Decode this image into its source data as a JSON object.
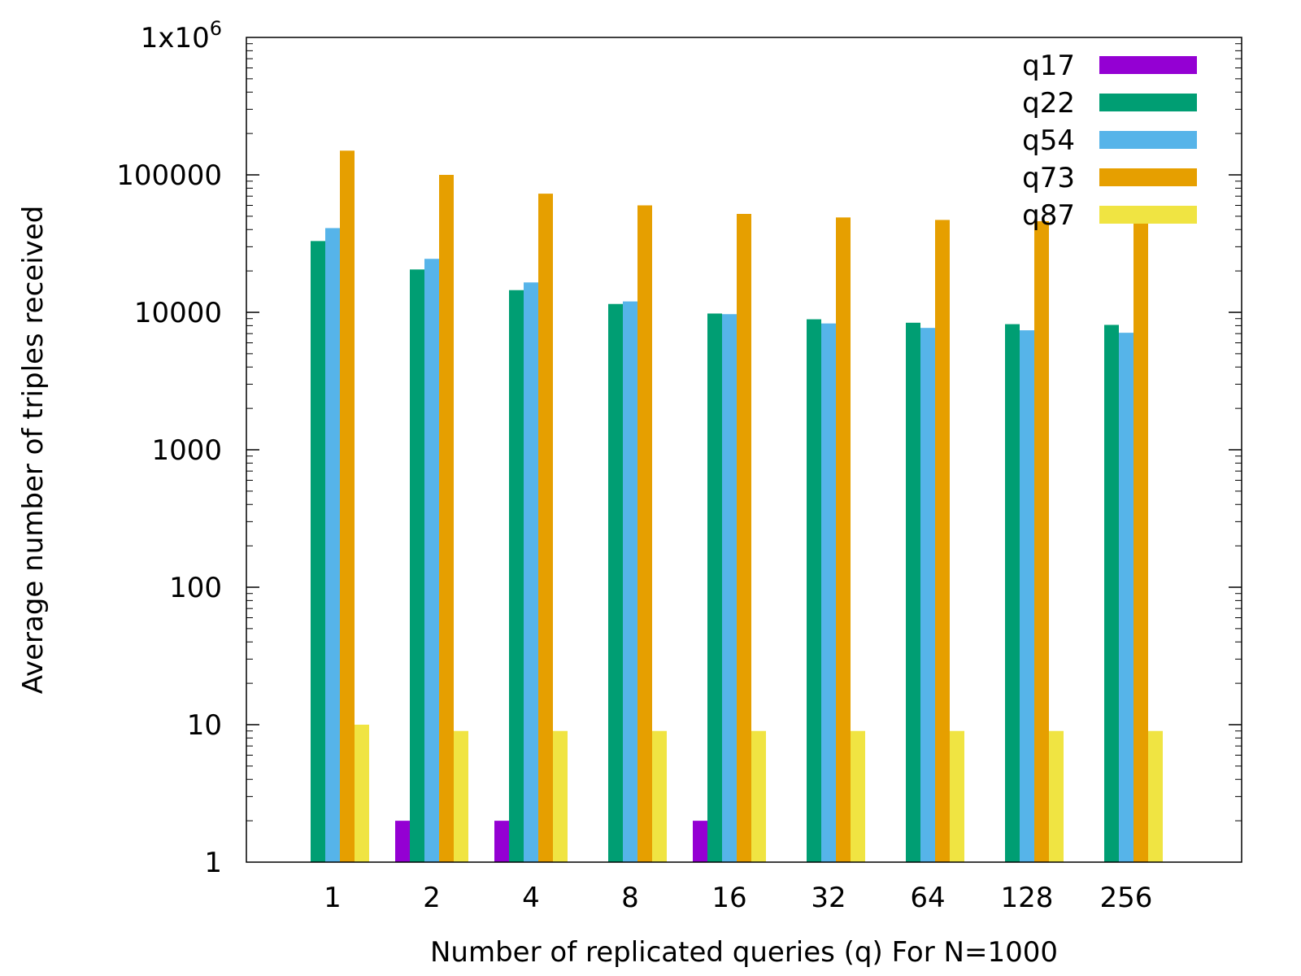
{
  "chart_data": {
    "type": "bar",
    "xlabel": "Number of replicated queries (q) For N=1000",
    "ylabel": "Average number of triples received",
    "y_scale": "log",
    "ylim": [
      1,
      1000000
    ],
    "yticks": [
      {
        "value": 1,
        "label": "1"
      },
      {
        "value": 10,
        "label": "10"
      },
      {
        "value": 100,
        "label": "100"
      },
      {
        "value": 1000,
        "label": "1000"
      },
      {
        "value": 10000,
        "label": "10000"
      },
      {
        "value": 100000,
        "label": "100000"
      },
      {
        "value": 1000000,
        "label": "1x10",
        "sup": "6"
      }
    ],
    "categories": [
      "1",
      "2",
      "4",
      "8",
      "16",
      "32",
      "64",
      "128",
      "256"
    ],
    "legend_position": "top-right",
    "series": [
      {
        "name": "q17",
        "color": "#9400d3",
        "values": [
          1,
          2,
          2,
          1,
          2,
          1,
          1,
          1,
          1
        ]
      },
      {
        "name": "q22",
        "color": "#009e73",
        "values": [
          33000,
          20500,
          14500,
          11500,
          9800,
          8900,
          8400,
          8200,
          8100
        ]
      },
      {
        "name": "q54",
        "color": "#56b4e9",
        "values": [
          41000,
          24500,
          16500,
          12000,
          9700,
          8300,
          7700,
          7400,
          7100
        ]
      },
      {
        "name": "q73",
        "color": "#e69f00",
        "values": [
          150000,
          100000,
          73000,
          60000,
          52000,
          49000,
          47000,
          46000,
          45000
        ]
      },
      {
        "name": "q87",
        "color": "#f0e442",
        "values": [
          10,
          9,
          9,
          9,
          9,
          9,
          9,
          9,
          9
        ]
      }
    ]
  }
}
